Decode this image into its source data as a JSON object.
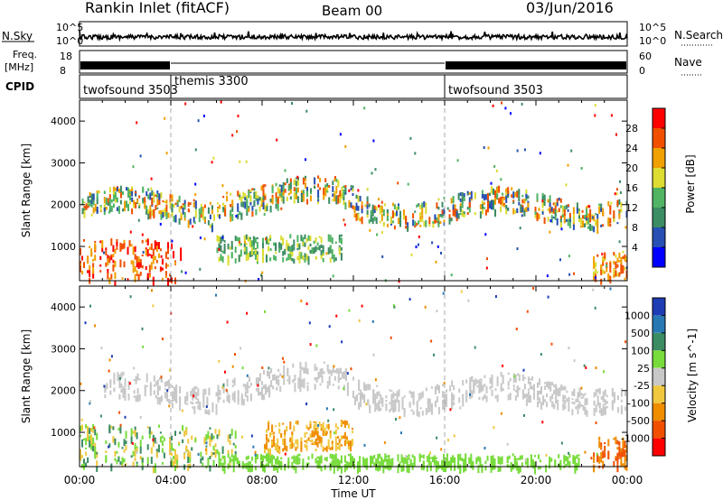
{
  "header": {
    "title": "Rankin Inlet (fitACF)",
    "beam": "Beam 00",
    "date": "03/Jun/2016"
  },
  "strips": {
    "nsky_label": "N.Sky",
    "nsearch_label": "N.Search",
    "nsky_ticks": [
      "10^5",
      "10^0"
    ],
    "nsearch_ticks": [
      "10^5",
      "10^0"
    ],
    "freq_label_1": "Freq.",
    "freq_label_2": "[MHz]",
    "freq_ticks": [
      "18",
      "8"
    ],
    "nave_label": "Nave",
    "nave_ticks": [
      "60",
      "0"
    ],
    "cpid_label": "CPID",
    "cpid_segments": [
      {
        "name": "twofsound 3503",
        "start_h": 0,
        "end_h": 4
      },
      {
        "name": "themis 3300",
        "start_h": 4,
        "end_h": 16
      },
      {
        "name": "twofsound 3503",
        "start_h": 16,
        "end_h": 24
      }
    ]
  },
  "chart_data": [
    {
      "type": "heatmap",
      "name": "power-panel",
      "ylabel": "Slant Range [km]",
      "xlim": [
        0,
        24
      ],
      "ylim": [
        180,
        4500
      ],
      "yticks": [
        1000,
        2000,
        3000,
        4000
      ],
      "colorbar_label": "Power [dB]",
      "colorbar_ticks": [
        "4",
        "8",
        "12",
        "16",
        "20",
        "24",
        "28"
      ],
      "colors": [
        "#0000ff",
        "#2850b4",
        "#3c8c64",
        "#50b464",
        "#dcdc32",
        "#f0a000",
        "#f05000",
        "#ff0000"
      ],
      "bands": [
        {
          "x": [
            0.1,
            24
          ],
          "y": [
            1400,
            2600
          ],
          "pattern": "wavy-echo",
          "color_levels": [
            1,
            2,
            3,
            4,
            5,
            6
          ]
        },
        {
          "x": [
            0,
            4.5
          ],
          "y": [
            180,
            1200
          ],
          "pattern": "near-range-strong",
          "color_levels": [
            5,
            6,
            7
          ]
        },
        {
          "x": [
            6.0,
            11.5
          ],
          "y": [
            700,
            1300
          ],
          "pattern": "patches",
          "color_levels": [
            2,
            3,
            4
          ]
        },
        {
          "x": [
            22.5,
            24
          ],
          "y": [
            200,
            900
          ],
          "pattern": "near-range",
          "color_levels": [
            4,
            5,
            6
          ]
        }
      ]
    },
    {
      "type": "heatmap",
      "name": "velocity-panel",
      "ylabel": "Slant Range [km]",
      "xlabel": "Time UT",
      "xlim": [
        0,
        24
      ],
      "ylim": [
        180,
        4500
      ],
      "yticks": [
        1000,
        2000,
        3000,
        4000
      ],
      "xticks": [
        "00:00",
        "04:00",
        "08:00",
        "12:00",
        "16:00",
        "20:00",
        "00:00"
      ],
      "colorbar_label": "Velocity [m s^-1]",
      "colorbar_ticks": [
        "1000",
        "500",
        "100",
        "25",
        "-25",
        "-100",
        "-500",
        "-1000"
      ],
      "colors": [
        "#1e3cb4",
        "#2878b4",
        "#3c8c64",
        "#78dc3c",
        "#c8c8c8",
        "#f0c840",
        "#f08c00",
        "#f05000",
        "#ff0000"
      ],
      "bands": [
        {
          "x": [
            1.0,
            24
          ],
          "y": [
            1400,
            2600
          ],
          "pattern": "ground-scatter",
          "color_levels": [
            4
          ]
        },
        {
          "x": [
            0,
            7.0
          ],
          "y": [
            180,
            1200
          ],
          "pattern": "near-range-green",
          "color_levels": [
            2,
            3,
            5
          ]
        },
        {
          "x": [
            8.0,
            12.0
          ],
          "y": [
            600,
            1300
          ],
          "pattern": "patches-orange",
          "color_levels": [
            5,
            6
          ]
        },
        {
          "x": [
            6.0,
            22.0
          ],
          "y": [
            180,
            500
          ],
          "pattern": "near-range-light-green",
          "color_levels": [
            3
          ]
        },
        {
          "x": [
            22.5,
            24
          ],
          "y": [
            200,
            900
          ],
          "pattern": "near-range-orange",
          "color_levels": [
            6,
            7
          ]
        }
      ]
    }
  ]
}
